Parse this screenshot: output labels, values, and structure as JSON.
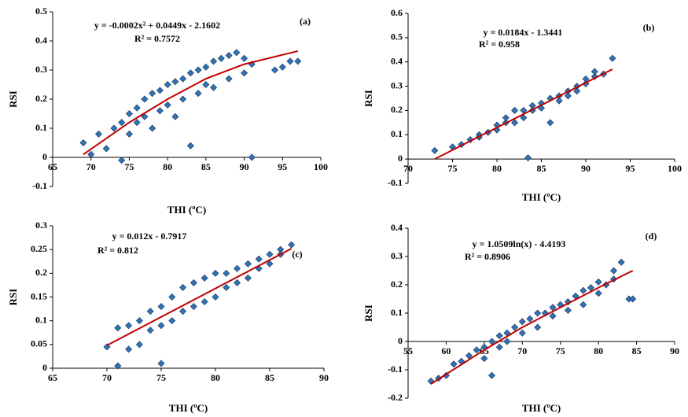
{
  "chart_data": [
    {
      "type": "scatter",
      "xlabel": "THI (ºC)",
      "ylabel": "RSI",
      "equation": "y = -0.0002x² + 0.0449x - 2.1602",
      "r_squared_label": "R² = 0.7572",
      "panel_label": "(a)",
      "color": "#2e75b6",
      "trend_color": "#c00000",
      "xlim": [
        65,
        100
      ],
      "xticks": [
        65,
        70,
        75,
        80,
        85,
        90,
        95,
        100
      ],
      "ylim": [
        -0.1,
        0.5
      ],
      "yticks": [
        -0.1,
        0,
        0.1,
        0.2,
        0.3,
        0.4,
        0.5
      ],
      "x": [
        69,
        70,
        71,
        72,
        73,
        74,
        74,
        75,
        75,
        76,
        76,
        77,
        77,
        78,
        78,
        79,
        79,
        80,
        80,
        81,
        81,
        82,
        82,
        83,
        83,
        84,
        84,
        85,
        85,
        86,
        86,
        87,
        88,
        88,
        89,
        90,
        90,
        91,
        91,
        94,
        95,
        96,
        97
      ],
      "values": [
        0.05,
        0.01,
        0.08,
        0.03,
        0.1,
        0.12,
        -0.01,
        0.15,
        0.08,
        0.17,
        0.12,
        0.2,
        0.14,
        0.22,
        0.1,
        0.23,
        0.16,
        0.25,
        0.18,
        0.26,
        0.14,
        0.27,
        0.2,
        0.29,
        0.04,
        0.3,
        0.22,
        0.31,
        0.25,
        0.33,
        0.24,
        0.34,
        0.35,
        0.27,
        0.36,
        0.34,
        0.29,
        0,
        0.32,
        0.3,
        0.31,
        0.33,
        0.33
      ],
      "trend_x": [
        69,
        75,
        80,
        85,
        90,
        97
      ],
      "trend_values": [
        0.01,
        0.12,
        0.2,
        0.27,
        0.32,
        0.365
      ]
    },
    {
      "type": "scatter",
      "xlabel": "THI (ºC)",
      "ylabel": "RSI",
      "equation": "y = 0.0184x - 1.3441",
      "r_squared_label": "R² = 0.958",
      "panel_label": "(b)",
      "color": "#2e75b6",
      "trend_color": "#c00000",
      "xlim": [
        70,
        100
      ],
      "xticks": [
        70,
        75,
        80,
        85,
        90,
        95,
        100
      ],
      "ylim": [
        -0.1,
        0.6
      ],
      "yticks": [
        -0.1,
        0,
        0.1,
        0.2,
        0.3,
        0.4,
        0.5,
        0.6
      ],
      "x": [
        73,
        75,
        76,
        77,
        78,
        78,
        79,
        80,
        80,
        81,
        81,
        82,
        82,
        83,
        83,
        83.5,
        84,
        84,
        85,
        85,
        86,
        86,
        87,
        87,
        88,
        88,
        89,
        89,
        90,
        90,
        91,
        91,
        92,
        93
      ],
      "values": [
        0.035,
        0.05,
        0.06,
        0.08,
        0.1,
        0.09,
        0.11,
        0.14,
        0.12,
        0.15,
        0.17,
        0.2,
        0.15,
        0.2,
        0.17,
        0.005,
        0.22,
        0.2,
        0.23,
        0.21,
        0.25,
        0.15,
        0.26,
        0.24,
        0.28,
        0.26,
        0.3,
        0.28,
        0.31,
        0.33,
        0.34,
        0.36,
        0.35,
        0.415
      ],
      "trend_x": [
        73,
        93
      ],
      "trend_values": [
        0,
        0.37
      ]
    },
    {
      "type": "scatter",
      "xlabel": "THI (ºC)",
      "ylabel": "RSI",
      "equation": "y = 0.012x - 0.7917",
      "r_squared_label": "R² = 0.812",
      "panel_label": "(c)",
      "color": "#2e75b6",
      "trend_color": "#c00000",
      "xlim": [
        65,
        90
      ],
      "xticks": [
        65,
        70,
        75,
        80,
        85,
        90
      ],
      "ylim": [
        0,
        0.3
      ],
      "yticks": [
        0,
        0.05,
        0.1,
        0.15,
        0.2,
        0.25,
        0.3
      ],
      "x": [
        70,
        71,
        71,
        72,
        72,
        73,
        73,
        74,
        74,
        75,
        75,
        75,
        76,
        76,
        77,
        77,
        78,
        78,
        79,
        79,
        80,
        80,
        81,
        81,
        82,
        82,
        83,
        83,
        84,
        84,
        85,
        85,
        86,
        86,
        87
      ],
      "values": [
        0.045,
        0.005,
        0.085,
        0.09,
        0.04,
        0.1,
        0.05,
        0.12,
        0.08,
        0.13,
        0.01,
        0.09,
        0.15,
        0.1,
        0.17,
        0.12,
        0.18,
        0.13,
        0.19,
        0.14,
        0.2,
        0.15,
        0.2,
        0.17,
        0.21,
        0.18,
        0.22,
        0.19,
        0.23,
        0.21,
        0.24,
        0.22,
        0.25,
        0.24,
        0.26
      ],
      "trend_x": [
        70,
        87
      ],
      "trend_values": [
        0.048,
        0.252
      ]
    },
    {
      "type": "scatter",
      "xlabel": "THI (ºC)",
      "ylabel": "RSI",
      "equation": "y = 1.0509ln(x) - 4.4193",
      "r_squared_label": "R² = 0.8906",
      "panel_label": "(d)",
      "color": "#2e75b6",
      "trend_color": "#c00000",
      "xlim": [
        55,
        90
      ],
      "xticks": [
        55,
        60,
        65,
        70,
        75,
        80,
        85,
        90
      ],
      "ylim": [
        -0.2,
        0.4
      ],
      "yticks": [
        -0.2,
        -0.1,
        0,
        0.1,
        0.2,
        0.3,
        0.4
      ],
      "x": [
        58,
        59,
        60,
        61,
        62,
        63,
        64,
        65,
        65,
        66,
        66,
        67,
        67,
        68,
        68,
        69,
        70,
        70,
        71,
        72,
        72,
        73,
        74,
        74,
        75,
        76,
        76,
        77,
        78,
        78,
        79,
        80,
        80,
        81,
        82,
        82,
        83,
        84,
        84.5
      ],
      "values": [
        -0.14,
        -0.13,
        -0.12,
        -0.08,
        -0.07,
        -0.05,
        -0.03,
        -0.02,
        -0.06,
        0,
        -0.12,
        0.02,
        -0.02,
        0.03,
        0,
        0.05,
        0.07,
        0.03,
        0.08,
        0.1,
        0.05,
        0.1,
        0.12,
        0.09,
        0.13,
        0.14,
        0.11,
        0.16,
        0.18,
        0.13,
        0.19,
        0.21,
        0.17,
        0.2,
        0.25,
        0.22,
        0.28,
        0.15,
        0.15
      ],
      "trend_x": [
        58,
        65,
        70,
        75,
        80,
        84.5
      ],
      "trend_values": [
        -0.15,
        -0.03,
        0.05,
        0.12,
        0.19,
        0.25
      ]
    }
  ]
}
